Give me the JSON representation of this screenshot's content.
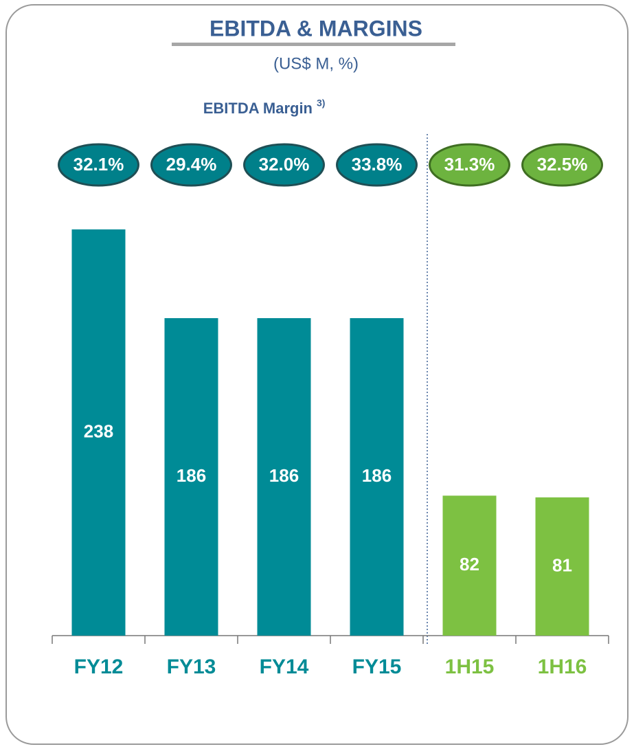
{
  "chart_data": {
    "type": "bar",
    "title": "EBITDA & MARGINS",
    "subtitle": "(US$ M, %)",
    "margin_title": "EBITDA Margin",
    "margin_note": "3)",
    "categories": [
      "FY12",
      "FY13",
      "FY14",
      "FY15",
      "1H15",
      "1H16"
    ],
    "values": [
      238,
      186,
      186,
      186,
      82,
      81
    ],
    "colors": [
      "#008b96",
      "#008b96",
      "#008b96",
      "#008b96",
      "#7dc142",
      "#7dc142"
    ],
    "margins": {
      "values": [
        32.1,
        29.4,
        32.0,
        33.8,
        31.3,
        32.5
      ],
      "value_labels": [
        "32.1%",
        "29.4%",
        "32.0%",
        "33.8%",
        "31.3%",
        "32.5%"
      ]
    },
    "ylim": [
      0,
      250
    ]
  }
}
